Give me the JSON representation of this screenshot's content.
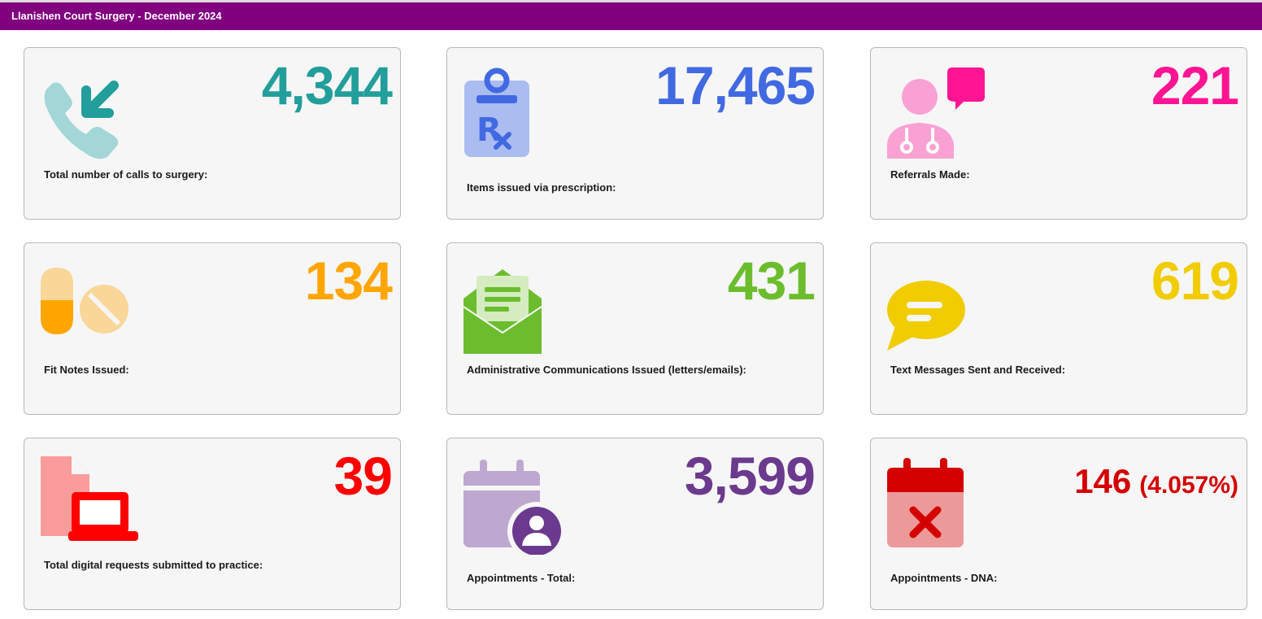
{
  "header": {
    "title": "Llanishen Court Surgery - December 2024"
  },
  "cards": [
    {
      "value": "4,344",
      "label": "Total number of calls to surgery:",
      "icon": "incoming-call-icon",
      "color": "#229e9b"
    },
    {
      "value": "17,465",
      "label": "Items issued via prescription:",
      "icon": "prescription-icon",
      "color": "#4169e1"
    },
    {
      "value": "221",
      "label": "Referrals Made:",
      "icon": "doctor-message-icon",
      "color": "#ff1493"
    },
    {
      "value": "134",
      "label": "Fit Notes Issued:",
      "icon": "pills-icon",
      "color": "#ffa500"
    },
    {
      "value": "431",
      "label": "Administrative Communications Issued (letters/emails):",
      "icon": "open-envelope-icon",
      "color": "#6cbd2e"
    },
    {
      "value": "619",
      "label": "Text Messages Sent and Received:",
      "icon": "speech-bubble-icon",
      "color": "#f0cc00"
    },
    {
      "value": "39",
      "label": "Total digital requests submitted to practice:",
      "icon": "file-laptop-icon",
      "color": "#ff0000"
    },
    {
      "value": "3,599",
      "label": "Appointments - Total:",
      "icon": "calendar-user-icon",
      "color": "#6b3a8e"
    },
    {
      "value": "146",
      "percent": "(4.057%)",
      "label": "Appointments - DNA:",
      "icon": "calendar-x-icon",
      "color": "#d40000"
    }
  ]
}
